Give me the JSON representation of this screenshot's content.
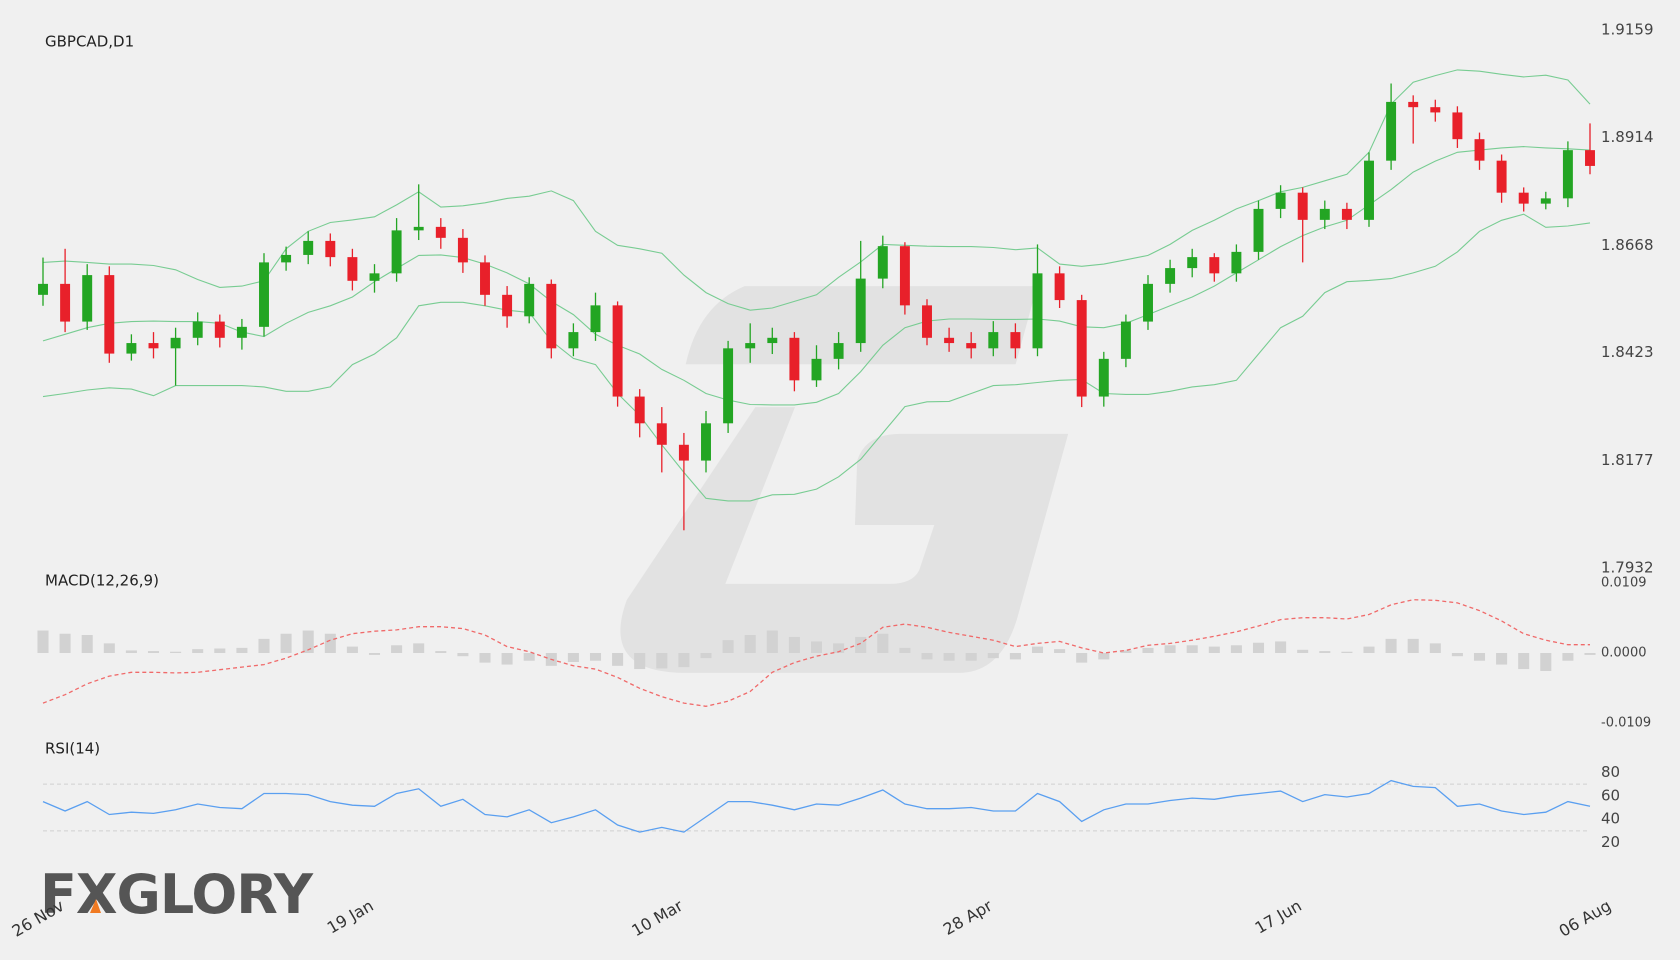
{
  "logo": "FXGLORY",
  "chart_data": [
    {
      "type": "candlestick",
      "title": "GBPCAD,D1",
      "categories": [
        "26 Nov",
        null,
        null,
        null,
        null,
        null,
        null,
        null,
        null,
        null,
        null,
        null,
        null,
        null,
        "19 Jan",
        null,
        null,
        null,
        null,
        null,
        null,
        null,
        null,
        null,
        null,
        null,
        null,
        null,
        "10 Mar",
        null,
        null,
        null,
        null,
        null,
        null,
        null,
        null,
        null,
        null,
        null,
        null,
        null,
        "28 Apr",
        null,
        null,
        null,
        null,
        null,
        null,
        null,
        null,
        null,
        null,
        null,
        null,
        null,
        "17 Jun",
        null,
        null,
        null,
        null,
        null,
        null,
        null,
        null,
        null,
        null,
        null,
        null,
        null,
        "06 Aug"
      ],
      "open": [
        1.8555,
        1.858,
        1.8494,
        1.86,
        1.8421,
        1.8445,
        1.8433,
        1.8457,
        1.8494,
        1.8457,
        1.8482,
        1.8629,
        1.8646,
        1.8678,
        1.8641,
        1.8587,
        1.8604,
        1.8702,
        1.871,
        1.8685,
        1.8629,
        1.8555,
        1.8506,
        1.858,
        1.8433,
        1.847,
        1.8531,
        1.8323,
        1.8262,
        1.8213,
        1.8177,
        1.8262,
        1.8433,
        1.8445,
        1.8457,
        1.836,
        1.8409,
        1.8445,
        1.8592,
        1.8666,
        1.8531,
        1.8457,
        1.8445,
        1.8433,
        1.847,
        1.8433,
        1.8604,
        1.8543,
        1.8323,
        1.8409,
        1.8494,
        1.858,
        1.8616,
        1.8641,
        1.8604,
        1.8653,
        1.8751,
        1.8788,
        1.8726,
        1.8751,
        1.8726,
        1.8861,
        1.8995,
        1.8983,
        1.8971,
        1.891,
        1.8861,
        1.8788,
        1.8763,
        1.8775,
        1.8885
      ],
      "high": [
        1.864,
        1.866,
        1.8625,
        1.862,
        1.8465,
        1.847,
        1.848,
        1.8515,
        1.851,
        1.85,
        1.865,
        1.8665,
        1.87,
        1.8695,
        1.866,
        1.8625,
        1.873,
        1.8807,
        1.873,
        1.8705,
        1.8645,
        1.8575,
        1.8595,
        1.859,
        1.849,
        1.856,
        1.854,
        1.834,
        1.8299,
        1.824,
        1.829,
        1.845,
        1.849,
        1.848,
        1.847,
        1.844,
        1.847,
        1.8678,
        1.869,
        1.8675,
        1.8545,
        1.848,
        1.847,
        1.8495,
        1.849,
        1.867,
        1.862,
        1.8555,
        1.8425,
        1.851,
        1.86,
        1.8635,
        1.866,
        1.865,
        1.867,
        1.877,
        1.8805,
        1.88,
        1.877,
        1.8765,
        1.888,
        1.9037,
        1.901,
        1.9,
        1.8985,
        1.8925,
        1.8875,
        1.88,
        1.879,
        1.8905,
        1.8946
      ],
      "low": [
        1.853,
        1.847,
        1.8475,
        1.84,
        1.8405,
        1.841,
        1.8348,
        1.844,
        1.8435,
        1.843,
        1.846,
        1.861,
        1.8625,
        1.862,
        1.8565,
        1.856,
        1.8585,
        1.868,
        1.866,
        1.8605,
        1.853,
        1.848,
        1.849,
        1.841,
        1.8415,
        1.845,
        1.83,
        1.823,
        1.815,
        1.8018,
        1.815,
        1.824,
        1.84,
        1.842,
        1.8335,
        1.8345,
        1.8385,
        1.8425,
        1.857,
        1.851,
        1.844,
        1.8425,
        1.841,
        1.8415,
        1.841,
        1.8415,
        1.8525,
        1.8299,
        1.83,
        1.839,
        1.8475,
        1.856,
        1.8595,
        1.8585,
        1.8585,
        1.8635,
        1.873,
        1.8629,
        1.8705,
        1.8705,
        1.871,
        1.884,
        1.89,
        1.895,
        1.889,
        1.884,
        1.8765,
        1.8745,
        1.875,
        1.8755,
        1.883
      ],
      "close": [
        1.858,
        1.8494,
        1.86,
        1.8421,
        1.8445,
        1.8433,
        1.8457,
        1.8494,
        1.8457,
        1.8482,
        1.8629,
        1.8646,
        1.8678,
        1.8641,
        1.8587,
        1.8604,
        1.8702,
        1.871,
        1.8685,
        1.8629,
        1.8555,
        1.8506,
        1.858,
        1.8433,
        1.847,
        1.8531,
        1.8323,
        1.8262,
        1.8213,
        1.8177,
        1.8262,
        1.8433,
        1.8445,
        1.8457,
        1.836,
        1.8409,
        1.8445,
        1.8592,
        1.8666,
        1.8531,
        1.8457,
        1.8445,
        1.8433,
        1.847,
        1.8433,
        1.8604,
        1.8543,
        1.8323,
        1.8409,
        1.8494,
        1.858,
        1.8616,
        1.8641,
        1.8604,
        1.8653,
        1.8751,
        1.8788,
        1.8726,
        1.8751,
        1.8726,
        1.8861,
        1.8995,
        1.8983,
        1.8971,
        1.891,
        1.8861,
        1.8788,
        1.8763,
        1.8775,
        1.8885,
        1.8849
      ],
      "up_color": "#23a523",
      "down_color": "#e8202a",
      "bands": {
        "color": "#78cc92",
        "upper": [
          1.8629,
          1.8632,
          1.8629,
          1.8625,
          1.8625,
          1.8622,
          1.8612,
          1.859,
          1.8572,
          1.8575,
          1.8587,
          1.866,
          1.87,
          1.872,
          1.8726,
          1.8733,
          1.876,
          1.879,
          1.8755,
          1.8758,
          1.8765,
          1.8775,
          1.878,
          1.8792,
          1.877,
          1.87,
          1.8668,
          1.866,
          1.865,
          1.86,
          1.856,
          1.8535,
          1.852,
          1.8525,
          1.854,
          1.8555,
          1.8595,
          1.863,
          1.867,
          1.8668,
          1.8666,
          1.8665,
          1.8665,
          1.8663,
          1.8658,
          1.8662,
          1.8625,
          1.862,
          1.8625,
          1.8635,
          1.8645,
          1.867,
          1.8702,
          1.8725,
          1.8751,
          1.877,
          1.879,
          1.88,
          1.8815,
          1.883,
          1.888,
          1.899,
          1.904,
          1.9055,
          1.9068,
          1.9065,
          1.9058,
          1.9052,
          1.9056,
          1.9045,
          1.899
        ],
        "middle": [
          1.845,
          1.8465,
          1.848,
          1.849,
          1.8494,
          1.8495,
          1.8494,
          1.8494,
          1.849,
          1.847,
          1.846,
          1.849,
          1.8515,
          1.853,
          1.855,
          1.8585,
          1.8615,
          1.8645,
          1.8646,
          1.864,
          1.8625,
          1.8605,
          1.858,
          1.854,
          1.851,
          1.8465,
          1.844,
          1.842,
          1.8385,
          1.836,
          1.833,
          1.8315,
          1.8305,
          1.8304,
          1.8304,
          1.831,
          1.833,
          1.838,
          1.844,
          1.848,
          1.8495,
          1.85,
          1.85,
          1.8499,
          1.8499,
          1.85,
          1.8495,
          1.8482,
          1.848,
          1.849,
          1.851,
          1.853,
          1.855,
          1.8575,
          1.8605,
          1.8635,
          1.8665,
          1.869,
          1.871,
          1.8725,
          1.876,
          1.8795,
          1.8835,
          1.886,
          1.888,
          1.8885,
          1.889,
          1.8893,
          1.889,
          1.8888,
          1.8885
        ],
        "lower": [
          1.8323,
          1.833,
          1.8338,
          1.8343,
          1.834,
          1.8325,
          1.8348,
          1.8348,
          1.8348,
          1.8348,
          1.8345,
          1.8335,
          1.8335,
          1.8345,
          1.8396,
          1.842,
          1.8457,
          1.853,
          1.8538,
          1.8538,
          1.853,
          1.852,
          1.8515,
          1.845,
          1.841,
          1.8396,
          1.833,
          1.828,
          1.8213,
          1.815,
          1.8091,
          1.8085,
          1.8085,
          1.8099,
          1.81,
          1.8112,
          1.814,
          1.818,
          1.824,
          1.83,
          1.8311,
          1.8312,
          1.833,
          1.8348,
          1.835,
          1.8355,
          1.836,
          1.8362,
          1.833,
          1.8328,
          1.8328,
          1.8335,
          1.8345,
          1.835,
          1.836,
          1.842,
          1.848,
          1.8506,
          1.856,
          1.8585,
          1.8588,
          1.8592,
          1.8605,
          1.862,
          1.8653,
          1.87,
          1.8725,
          1.8739,
          1.8709,
          1.8712,
          1.8719
        ]
      },
      "ylim": [
        1.7932,
        1.9159
      ],
      "yticks": [
        1.9159,
        1.8914,
        1.8668,
        1.8423,
        1.8177,
        1.7932
      ]
    },
    {
      "type": "macd",
      "title": "MACD(12,26,9)",
      "histogram": {
        "color": "#d2d2d2",
        "values": [
          0.0035,
          0.003,
          0.0028,
          0.0015,
          0.0004,
          0.0003,
          0.0002,
          0.0006,
          0.0007,
          0.0008,
          0.0022,
          0.003,
          0.0035,
          0.003,
          0.001,
          -0.0003,
          0.0012,
          0.0015,
          0.0003,
          -0.0005,
          -0.0015,
          -0.0018,
          -0.0012,
          -0.002,
          -0.0014,
          -0.0012,
          -0.002,
          -0.0025,
          -0.0024,
          -0.0022,
          -0.0008,
          0.002,
          0.0028,
          0.0035,
          0.0025,
          0.0018,
          0.0015,
          0.0025,
          0.003,
          0.0008,
          -0.001,
          -0.0012,
          -0.0012,
          -0.0008,
          -0.001,
          0.001,
          0.0006,
          -0.0015,
          -0.001,
          0.0004,
          0.0008,
          0.0012,
          0.0012,
          0.001,
          0.0012,
          0.0016,
          0.0018,
          0.0005,
          0.0003,
          0.0002,
          0.001,
          0.0022,
          0.0022,
          0.0015,
          -0.0005,
          -0.0012,
          -0.0018,
          -0.0025,
          -0.0028,
          -0.0012,
          -0.0003
        ]
      },
      "signal": {
        "color": "#f06a6a",
        "values": [
          -0.0078,
          -0.0065,
          -0.0048,
          -0.0036,
          -0.003,
          -0.003,
          -0.0031,
          -0.003,
          -0.0026,
          -0.0022,
          -0.0018,
          -0.0008,
          0.0005,
          0.002,
          0.003,
          0.0034,
          0.0036,
          0.0041,
          0.0041,
          0.0038,
          0.0028,
          0.001,
          0.0002,
          -0.001,
          -0.002,
          -0.0025,
          -0.0038,
          -0.0055,
          -0.0068,
          -0.0078,
          -0.0083,
          -0.0075,
          -0.006,
          -0.003,
          -0.0015,
          -0.0005,
          0.0002,
          0.0015,
          0.004,
          0.0045,
          0.004,
          0.0032,
          0.0026,
          0.002,
          0.001,
          0.0015,
          0.0018,
          0.0008,
          0.0,
          0.0004,
          0.0012,
          0.0015,
          0.002,
          0.0026,
          0.0033,
          0.0042,
          0.0052,
          0.0055,
          0.0055,
          0.0053,
          0.006,
          0.0075,
          0.0083,
          0.0082,
          0.0078,
          0.0066,
          0.005,
          0.003,
          0.002,
          0.0013,
          0.0013
        ]
      },
      "ylim": [
        -0.0109,
        0.0109
      ],
      "yticks": [
        0.0109,
        {
          "value": 0,
          "label": "0.0000"
        },
        -0.0109
      ]
    },
    {
      "type": "line",
      "title": "RSI(14)",
      "color": "#5a9ff0",
      "values": [
        55,
        47,
        55,
        44,
        46,
        45,
        48,
        53,
        50,
        49,
        62,
        62,
        61,
        55,
        52,
        51,
        62,
        66,
        51,
        57,
        44,
        42,
        48,
        37,
        42,
        48,
        35,
        29,
        33,
        29,
        42,
        55,
        55,
        52,
        48,
        53,
        52,
        58,
        65,
        53,
        49,
        49,
        50,
        47,
        47,
        62,
        55,
        38,
        48,
        53,
        53,
        56,
        58,
        57,
        60,
        62,
        64,
        55,
        61,
        59,
        62,
        73,
        68,
        67,
        51,
        53,
        47,
        44,
        46,
        55,
        51
      ],
      "levels": [
        30,
        70
      ],
      "ylim": [
        0,
        100
      ],
      "yticks": [
        80,
        60,
        40,
        20
      ]
    }
  ]
}
